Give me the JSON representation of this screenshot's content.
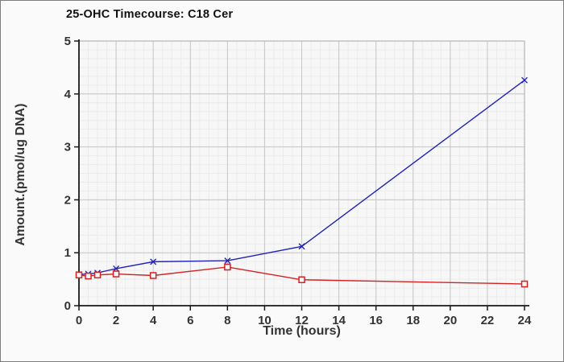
{
  "window": {
    "background": "#fafafa",
    "border_color": "#7d7d7d"
  },
  "chart_data": {
    "type": "line",
    "title": "25-OHC Timecourse: C18 Cer",
    "xlabel": "Time (hours)",
    "ylabel": "Amount.(pmol/ug DNA)",
    "xlim": [
      0,
      24
    ],
    "ylim": [
      0,
      5
    ],
    "x_ticks": [
      0,
      2,
      4,
      6,
      8,
      10,
      12,
      14,
      16,
      18,
      20,
      22,
      24
    ],
    "y_ticks": [
      0,
      1,
      2,
      3,
      4,
      5
    ],
    "x": [
      0,
      0.5,
      1,
      2,
      4,
      8,
      12,
      24
    ],
    "series": [
      {
        "marker": "x",
        "color": "#2222bb",
        "values": [
          0.59,
          0.6,
          0.62,
          0.7,
          0.83,
          0.85,
          1.12,
          4.26
        ]
      },
      {
        "marker": "square-open",
        "color": "#d32222",
        "values": [
          0.58,
          0.56,
          0.58,
          0.6,
          0.57,
          0.73,
          0.49,
          0.41
        ]
      }
    ],
    "legend": "none",
    "grid": {
      "on": true,
      "minor_x_step_hours": 0.5,
      "minor_y_divisions_per_unit": 6,
      "plot_bg": "#f7f7f7",
      "minor_color": "#ececec",
      "major_color": "#c6c6c6",
      "plot_border_color": "#b5b5b5",
      "axis_color": "#1a1a1a",
      "tick_label_color": "#333333"
    }
  }
}
